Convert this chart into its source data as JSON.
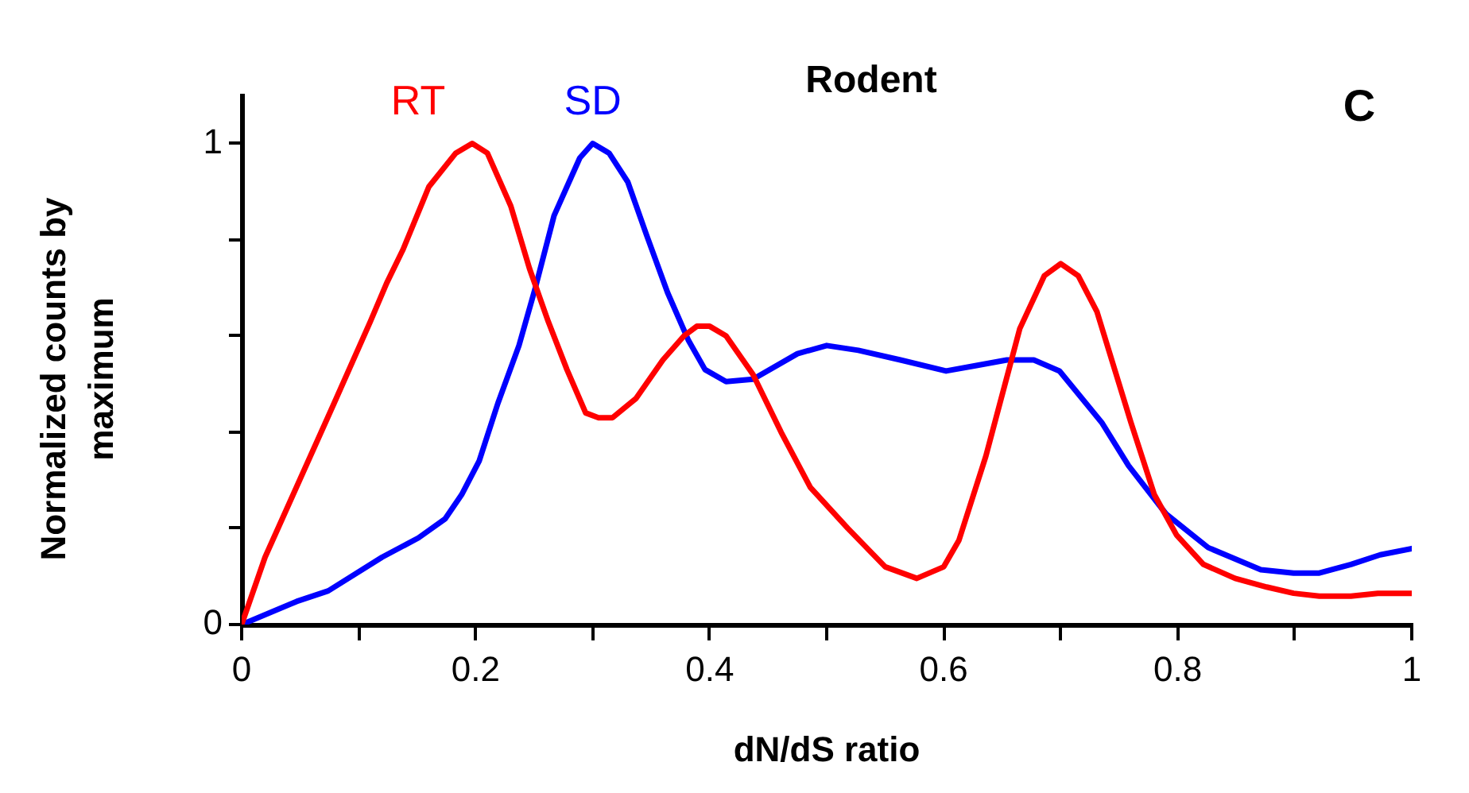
{
  "chart_data": {
    "type": "line",
    "title": "Rodent",
    "xlabel": "dN/dS ratio",
    "ylabel": "Normalized counts by maximum",
    "annotations": [
      "C"
    ],
    "xlim": [
      0,
      1
    ],
    "xticks": [
      0,
      {
        "value": 0.1,
        "label": null
      },
      0.2,
      {
        "value": 0.3,
        "label": null
      },
      0.4,
      {
        "value": 0.5,
        "label": null
      },
      0.6,
      {
        "value": 0.7,
        "label": null
      },
      0.8,
      {
        "value": 0.9,
        "label": null
      },
      1
    ],
    "ylim": [
      0,
      1.1
    ],
    "yticks": [
      0,
      {
        "value": 0.2,
        "label": null
      },
      {
        "value": 0.4,
        "label": null
      },
      {
        "value": 0.6,
        "label": null
      },
      {
        "value": 0.8,
        "label": null
      },
      1
    ],
    "grid": false,
    "marker": "none",
    "line_style": "solid",
    "series": [
      {
        "name": "RT",
        "color": "#ff0000",
        "x": [
          0,
          0.02,
          0.079,
          0.11,
          0.124,
          0.138,
          0.16,
          0.183,
          0.197,
          0.21,
          0.23,
          0.246,
          0.262,
          0.278,
          0.294,
          0.305,
          0.317,
          0.337,
          0.36,
          0.378,
          0.389,
          0.4,
          0.414,
          0.437,
          0.461,
          0.486,
          0.518,
          0.55,
          0.577,
          0.6,
          0.613,
          0.636,
          0.665,
          0.686,
          0.7,
          0.715,
          0.731,
          0.76,
          0.78,
          0.799,
          0.822,
          0.849,
          0.876,
          0.899,
          0.921,
          0.948,
          0.971,
          1
        ],
        "values": [
          0,
          0.14,
          0.46,
          0.63,
          0.71,
          0.78,
          0.91,
          0.98,
          1,
          0.98,
          0.87,
          0.74,
          0.63,
          0.53,
          0.44,
          0.43,
          0.43,
          0.47,
          0.55,
          0.6,
          0.62,
          0.62,
          0.6,
          0.52,
          0.4,
          0.285,
          0.2,
          0.12,
          0.096,
          0.12,
          0.175,
          0.35,
          0.615,
          0.725,
          0.75,
          0.725,
          0.65,
          0.42,
          0.27,
          0.186,
          0.125,
          0.096,
          0.078,
          0.065,
          0.059,
          0.059,
          0.065,
          0.065
        ]
      },
      {
        "name": "SD",
        "color": "#0000ff",
        "x": [
          0,
          0.047,
          0.074,
          0.12,
          0.151,
          0.174,
          0.188,
          0.203,
          0.219,
          0.237,
          0.251,
          0.267,
          0.278,
          0.289,
          0.3,
          0.314,
          0.33,
          0.346,
          0.364,
          0.382,
          0.396,
          0.414,
          0.437,
          0.475,
          0.5,
          0.527,
          0.563,
          0.602,
          0.627,
          0.654,
          0.677,
          0.699,
          0.735,
          0.758,
          0.79,
          0.826,
          0.871,
          0.899,
          0.921,
          0.948,
          0.973,
          1
        ],
        "values": [
          0,
          0.048,
          0.07,
          0.14,
          0.18,
          0.22,
          0.27,
          0.34,
          0.46,
          0.58,
          0.7,
          0.85,
          0.91,
          0.97,
          1,
          0.98,
          0.92,
          0.81,
          0.69,
          0.59,
          0.53,
          0.505,
          0.51,
          0.563,
          0.58,
          0.57,
          0.55,
          0.527,
          0.538,
          0.55,
          0.55,
          0.527,
          0.42,
          0.33,
          0.23,
          0.16,
          0.114,
          0.107,
          0.107,
          0.125,
          0.145,
          0.158
        ]
      }
    ]
  }
}
